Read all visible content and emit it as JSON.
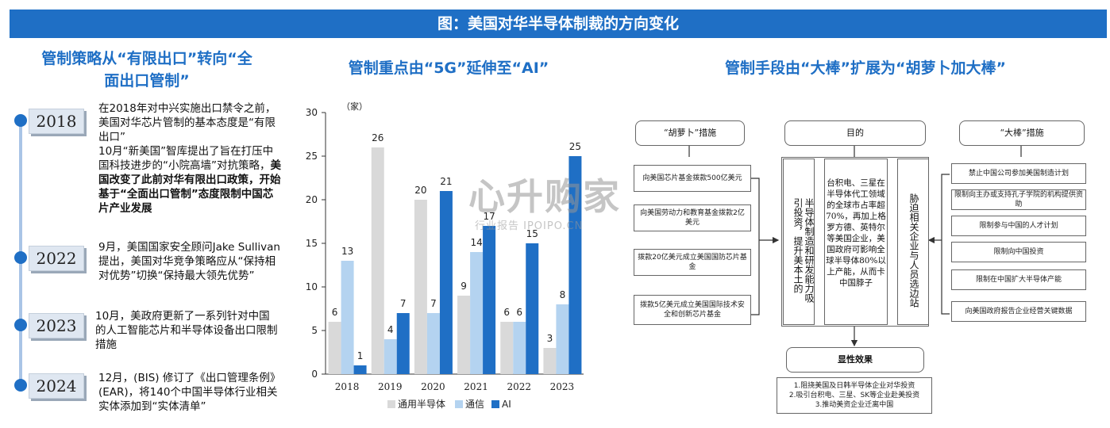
{
  "banner": "图：美国对华半导体制裁的方向变化",
  "left": {
    "title_line1": "管制策略从“有限出口”转向“全",
    "title_line2": "面出口管制”",
    "entries": [
      {
        "year": "2018",
        "text1": "在2018年对中兴实施出口禁令之前，美国对华芯片管制的基本态度是“有限出口”",
        "text2": "10月“新美国”智库提出了旨在打压中国科技进步的“小院高墙”对抗策略，",
        "text3": "美国改变了此前对华有限出口政策，开始基于“全面出口管制”态度限制中国芯片产业发展"
      },
      {
        "year": "2022",
        "text": "9月，美国国家安全顾问Jake Sullivan提出，美国对华竞争策略应从“保持相对优势”切换“保持最大领先优势”"
      },
      {
        "year": "2023",
        "text": "10月，美政府更新了一系列针对中国的人工智能芯片和半导体设备出口限制措施"
      },
      {
        "year": "2024",
        "text": "12月，(BIS) 修订了《出口管理条例》(EAR)，将140个中国半导体行业相关实体添加到“实体清单”"
      }
    ]
  },
  "middle": {
    "title": "管制重点由“5G”延伸至“AI”"
  },
  "chart_data": {
    "type": "bar",
    "unit_label": "（家）",
    "categories": [
      "2018",
      "2019",
      "2020",
      "2021",
      "2022",
      "2023"
    ],
    "series": [
      {
        "name": "通用半导体",
        "values": [
          6,
          26,
          20,
          9,
          6,
          3
        ],
        "color": "#d9d9d9"
      },
      {
        "name": "通信",
        "values": [
          13,
          4,
          7,
          14,
          6,
          8
        ],
        "color": "#b4d3f0"
      },
      {
        "name": "AI",
        "values": [
          1,
          7,
          21,
          17,
          15,
          25
        ],
        "color": "#1f6fc5"
      }
    ],
    "yticks": [
      "0",
      "5",
      "10",
      "15",
      "20",
      "25",
      "30"
    ],
    "ylim": [
      0,
      30
    ],
    "legend_position": "bottom"
  },
  "right": {
    "title": "管制手段由“大棒”扩展为“胡萝卜加大棒”",
    "carrot_title": "“胡萝卜”措施",
    "carrot_items": [
      "向美国芯片基金拨款500亿美元",
      "向美国劳动力和教育基金拨款2亿美元",
      "拨款20亿美元成立美国国防芯片基金",
      "拨款5亿美元成立美国国际技术安全和创新芯片基金"
    ],
    "goal_title": "目的",
    "goal_left": "半导体制造和研发能力",
    "goal_left2": "吸引投资，提升美本土的",
    "goal_mid": "台积电、三星在半导体代工领域的全球市占率超70%，再加上格罗方德、英特尔等美国企业，美国政府可影响全球半导体80%以上产能，从而卡中国脖子",
    "goal_right": "胁迫相关企业与人员选边站",
    "stick_title": "“大棒”措施",
    "stick_items": [
      "禁止中国公司参加美国制造计划",
      "限制向主办或支持孔子学院的机构提供资助",
      "限制参与中国的人才计划",
      "限制向中国投资",
      "限制在中国扩大半导体产能",
      "向美国政府报告企业经营关键数据"
    ],
    "effect_title": "显性效果",
    "effects": [
      "1.阻挠美国及日韩半导体企业对华投资",
      "2.吸引台积电、三星、SK等企业赴美投资",
      "3.推动美资企业迁离中国"
    ]
  },
  "watermark": {
    "big": "心升购家",
    "small": "行业报告 IPOIPO.CN"
  }
}
